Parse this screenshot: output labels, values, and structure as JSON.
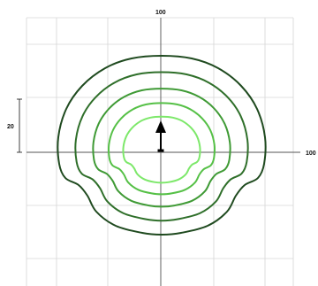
{
  "labels": {
    "top": "100",
    "right": "100",
    "scale": "20"
  },
  "colors": {
    "grid": "#d6d6d6",
    "axis": "#555555",
    "background": "#ffffff",
    "arrow": "#000000"
  },
  "chart_data": {
    "type": "contour",
    "contours": [
      {
        "color": "#1f4a1f"
      },
      {
        "color": "#2f6f2a"
      },
      {
        "color": "#3f9a35"
      },
      {
        "color": "#55c046"
      },
      {
        "color": "#7de86a"
      }
    ],
    "marker": "arrow-up"
  }
}
